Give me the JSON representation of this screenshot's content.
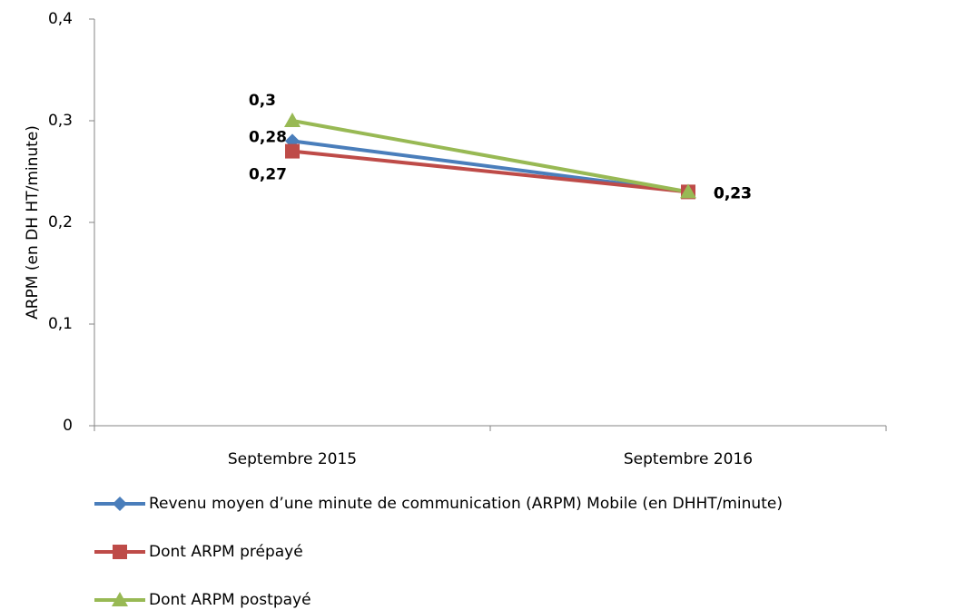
{
  "chart_data": {
    "type": "line",
    "ylabel": "ARPM (en DH HT/minute)",
    "categories": [
      "Septembre 2015",
      "Septembre 2016"
    ],
    "series": [
      {
        "name": "Revenu moyen d’une minute de communication (ARPM) Mobile (en DHHT/minute)",
        "color": "#4a7ebb",
        "marker": "diamond",
        "values": [
          0.28,
          0.23
        ],
        "value_labels": [
          "0,28",
          "0,23"
        ]
      },
      {
        "name": "Dont ARPM prépayé",
        "color": "#be4b48",
        "marker": "square",
        "values": [
          0.27,
          0.23
        ],
        "value_labels": [
          "0,27",
          "0,23"
        ]
      },
      {
        "name": "Dont ARPM postpayé",
        "color": "#98b954",
        "marker": "triangle",
        "values": [
          0.3,
          0.23
        ],
        "value_labels": [
          "0,3",
          "0,23"
        ]
      }
    ],
    "ylim": [
      0,
      0.4
    ],
    "yticks": [
      0,
      {
        "value": 0.1,
        "label": "0,1"
      },
      {
        "value": 0.2,
        "label": "0,2"
      },
      {
        "value": 0.3,
        "label": "0,3"
      },
      {
        "value": 0.4,
        "label": "0,4"
      }
    ],
    "legend": "bottom"
  }
}
